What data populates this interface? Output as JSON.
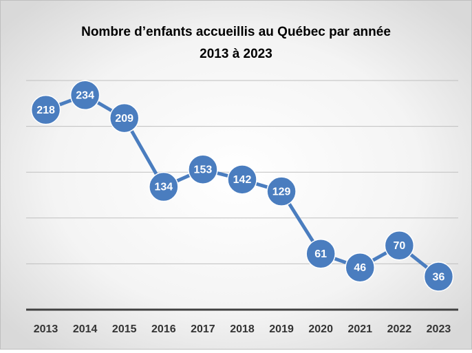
{
  "chart_data": {
    "type": "line",
    "title": "Nombre d’enfants accueillis au Québec par année",
    "subtitle": "2013 à 2023",
    "categories": [
      "2013",
      "2014",
      "2015",
      "2016",
      "2017",
      "2018",
      "2019",
      "2020",
      "2021",
      "2022",
      "2023"
    ],
    "series": [
      {
        "name": "Enfants accueillis",
        "color": "#4a7dbf",
        "values": [
          218,
          234,
          209,
          134,
          153,
          142,
          129,
          61,
          46,
          70,
          36
        ]
      }
    ],
    "ylim": [
      0,
      250
    ],
    "yticks": [
      0,
      50,
      100,
      150,
      200,
      250
    ],
    "grid": true
  }
}
